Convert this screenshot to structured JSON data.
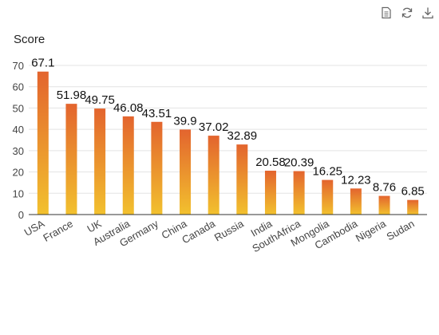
{
  "toolbar": {
    "items": [
      {
        "icon": "data-view-icon"
      },
      {
        "icon": "restore-icon"
      },
      {
        "icon": "save-image-icon"
      }
    ]
  },
  "chart_data": {
    "type": "bar",
    "title": "",
    "xlabel": "",
    "ylabel": "Score",
    "ylim": [
      0,
      70
    ],
    "yticks": [
      0,
      10,
      20,
      30,
      40,
      50,
      60,
      70
    ],
    "grid": true,
    "categories": [
      "USA",
      "France",
      "UK",
      "Australia",
      "Germany",
      "China",
      "Canada",
      "Russia",
      "India",
      "SouthAfrica",
      "Mongolia",
      "Cambodia",
      "Nigeria",
      "Sudan"
    ],
    "values": [
      67.1,
      51.98,
      49.75,
      46.08,
      43.51,
      39.9,
      37.02,
      32.89,
      20.58,
      20.39,
      16.25,
      12.23,
      8.76,
      6.85
    ],
    "value_labels": [
      "67.1",
      "51.98",
      "49.75",
      "46.08",
      "43.51",
      "39.9",
      "37.02",
      "32.89",
      "20.58",
      "20.39",
      "16.25",
      "12.23",
      "8.76",
      "6.85"
    ],
    "colors": {
      "bar_top": "#e3642e",
      "bar_bottom": "#f2c12e",
      "grid": "#e3e3e3",
      "axis": "#333333"
    }
  }
}
